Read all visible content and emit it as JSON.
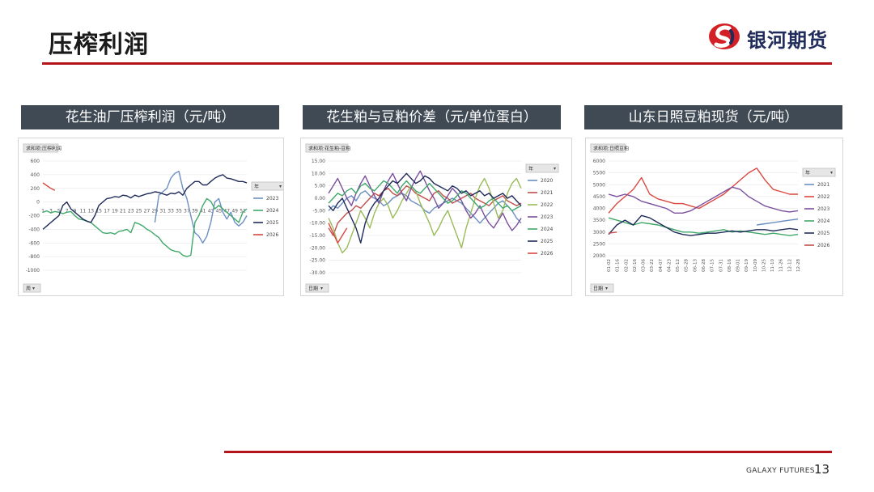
{
  "page": {
    "title": "压榨利润",
    "brand": "银河期货",
    "footer_brand": "GALAXY FUTURES",
    "page_number": "13",
    "accent_color": "#b5141b",
    "header_bg": "#3f4a55"
  },
  "chart_data": [
    {
      "type": "line",
      "title": "花生油厂压榨利润（元/吨）",
      "field_label": "求和项:压榨利润",
      "axis_button": "周",
      "legend_title": "年",
      "ylim": [
        -1000,
        600
      ],
      "yticks": [
        600,
        400,
        200,
        0,
        -200,
        -400,
        -600,
        -800,
        -1000
      ],
      "ytick_labels": [
        "600",
        "400",
        "200",
        "0",
        "-200",
        "-400",
        "-600",
        "-800",
        "-1000"
      ],
      "xticks": [
        1,
        3,
        5,
        7,
        9,
        11,
        13,
        15,
        17,
        19,
        21,
        23,
        25,
        27,
        29,
        31,
        33,
        35,
        37,
        39,
        41,
        43,
        45,
        47,
        49,
        51
      ],
      "xtick_labels": [
        "1",
        "3",
        "5",
        "7",
        "9",
        "11",
        "13",
        "15",
        "17",
        "19",
        "21",
        "23",
        "25",
        "27",
        "29",
        "31",
        "33",
        "35",
        "37",
        "39",
        "41",
        "43",
        "45",
        "47",
        "49",
        "51"
      ],
      "xlim": [
        1,
        52
      ],
      "grid": true,
      "legend_position": "right",
      "series": [
        {
          "name": "2023",
          "color": "#6a8fc2",
          "x": [
            29,
            30,
            31,
            32,
            33,
            34,
            35,
            36,
            37,
            38,
            39,
            40,
            41,
            42,
            43,
            44,
            45,
            46,
            47,
            48,
            49,
            50,
            51,
            52
          ],
          "values": [
            -300,
            100,
            150,
            200,
            350,
            420,
            450,
            200,
            50,
            -200,
            -450,
            -500,
            -600,
            -500,
            -300,
            0,
            50,
            -150,
            -250,
            -150,
            -300,
            -350,
            -300,
            -200
          ]
        },
        {
          "name": "2024",
          "color": "#3fa86a",
          "x": [
            1,
            2,
            3,
            4,
            5,
            6,
            7,
            8,
            9,
            10,
            11,
            12,
            13,
            14,
            15,
            16,
            17,
            18,
            19,
            20,
            21,
            22,
            23,
            24,
            25,
            26,
            27,
            28,
            29,
            30,
            31,
            32,
            33,
            34,
            35,
            36,
            37,
            38,
            39,
            40,
            41,
            42,
            43,
            44,
            45,
            46,
            47,
            48,
            49,
            50,
            51,
            52
          ],
          "values": [
            -150,
            -130,
            -160,
            -140,
            -150,
            -170,
            -150,
            -140,
            -200,
            -250,
            -260,
            -280,
            -300,
            -350,
            -400,
            -450,
            -460,
            -450,
            -470,
            -430,
            -420,
            -400,
            -450,
            -300,
            -320,
            -350,
            -400,
            -430,
            -480,
            -520,
            -600,
            -650,
            -700,
            -720,
            -730,
            -780,
            -800,
            -780,
            -300,
            -200,
            -50,
            50,
            10,
            -100,
            -50,
            -100,
            -150,
            -200,
            -250,
            -300,
            -150,
            -100
          ]
        },
        {
          "name": "2025",
          "color": "#1f2b5a",
          "x": [
            1,
            2,
            3,
            4,
            5,
            6,
            7,
            8,
            9,
            10,
            11,
            12,
            13,
            14,
            15,
            16,
            17,
            18,
            19,
            20,
            21,
            22,
            23,
            24,
            25,
            26,
            27,
            28,
            29,
            30,
            31,
            32,
            33,
            34,
            35,
            36,
            37,
            38,
            39,
            40,
            41,
            42,
            43,
            44,
            45,
            46,
            47,
            48,
            49,
            50,
            51,
            52
          ],
          "values": [
            -400,
            -350,
            -300,
            -250,
            -200,
            -50,
            0,
            -100,
            -150,
            -200,
            -250,
            -280,
            -300,
            -200,
            -50,
            0,
            50,
            60,
            80,
            70,
            100,
            90,
            60,
            100,
            80,
            100,
            120,
            130,
            150,
            140,
            120,
            100,
            130,
            120,
            150,
            100,
            200,
            250,
            300,
            300,
            250,
            250,
            300,
            350,
            380,
            400,
            350,
            340,
            320,
            300,
            300,
            280
          ]
        },
        {
          "name": "2026",
          "color": "#d9473f",
          "x": [
            1,
            2,
            3,
            4
          ],
          "values": [
            280,
            240,
            200,
            170
          ]
        }
      ]
    },
    {
      "type": "line",
      "title": "花生粕与豆粕价差（元/单位蛋白）",
      "field_label": "求和项:花生粕-豆粕",
      "axis_button": "日期",
      "legend_title": "年",
      "ylim": [
        -30,
        15
      ],
      "yticks": [
        15,
        10,
        5,
        0,
        -5,
        -10,
        -15,
        -20,
        -25,
        -30
      ],
      "ytick_labels": [
        "15.00",
        "10.00",
        "5.00",
        "0.00",
        "-5.00",
        "-10.00",
        "-15.00",
        "-20.00",
        "-25.00",
        "-30.00"
      ],
      "grid": true,
      "legend_position": "right",
      "series": [
        {
          "name": "2020",
          "color": "#6a8fc2",
          "values": [
            -5,
            -3,
            -4,
            -2,
            0,
            1,
            -1,
            2,
            3,
            1,
            0,
            -1,
            -3,
            -2,
            0,
            1,
            2,
            1,
            -1,
            -2,
            -3,
            -5,
            -6,
            -4,
            -3,
            -2,
            -1,
            0,
            -1,
            -2,
            -4,
            -6,
            -8,
            -10,
            -8,
            -6,
            -4,
            -2,
            -1,
            -3,
            -5,
            -8,
            -10
          ]
        },
        {
          "name": "2021",
          "color": "#c0504d",
          "values": [
            -12,
            -15,
            -10,
            -8,
            -6,
            -5,
            -3,
            -4,
            -2,
            0,
            2,
            1,
            3,
            4,
            2,
            1,
            3,
            5,
            4,
            2,
            1,
            0,
            -1,
            2,
            3,
            1,
            0,
            -2,
            -1,
            0,
            1,
            2,
            0,
            -1,
            -2,
            -3,
            -1,
            0,
            1,
            -1,
            -2,
            -3,
            -2
          ]
        },
        {
          "name": "2022",
          "color": "#9bbb59",
          "values": [
            -8,
            -12,
            -18,
            -22,
            -20,
            -15,
            -10,
            -5,
            -8,
            -12,
            -6,
            -2,
            0,
            -3,
            -8,
            -5,
            -1,
            2,
            5,
            3,
            -2,
            -6,
            -10,
            -15,
            -12,
            -8,
            -5,
            -10,
            -15,
            -20,
            -12,
            -6,
            0,
            5,
            8,
            4,
            -2,
            -8,
            -5,
            2,
            6,
            8,
            4
          ]
        },
        {
          "name": "2023",
          "color": "#7b4f9d",
          "values": [
            2,
            5,
            8,
            4,
            0,
            -3,
            2,
            6,
            9,
            5,
            1,
            -2,
            3,
            7,
            10,
            6,
            2,
            -1,
            4,
            8,
            11,
            7,
            3,
            0,
            -4,
            -2,
            1,
            4,
            2,
            -1,
            -5,
            -8,
            -6,
            -3,
            -7,
            -10,
            -12,
            -9,
            -6,
            -10,
            -13,
            -11,
            -8
          ]
        },
        {
          "name": "2024",
          "color": "#3fa86a",
          "values": [
            -2,
            0,
            2,
            1,
            3,
            4,
            2,
            5,
            6,
            4,
            3,
            5,
            7,
            6,
            4,
            2,
            5,
            7,
            5,
            3,
            2,
            4,
            6,
            4,
            2,
            0,
            -2,
            -1,
            1,
            3,
            2,
            0,
            -2,
            -4,
            -3,
            -1,
            0,
            -2,
            -4,
            -3,
            -5,
            -4,
            -3
          ]
        },
        {
          "name": "2025",
          "color": "#1f2b5a",
          "values": [
            -3,
            -5,
            -2,
            0,
            -4,
            -8,
            -12,
            -18,
            -10,
            -5,
            -2,
            0,
            3,
            5,
            7,
            6,
            8,
            10,
            8,
            6,
            7,
            9,
            8,
            6,
            5,
            4,
            3,
            5,
            4,
            2,
            3,
            1,
            2,
            3,
            1,
            2,
            0,
            1,
            2,
            0,
            1,
            -1,
            -3
          ]
        },
        {
          "name": "2026",
          "color": "#d9473f",
          "values": [
            -10,
            -14,
            -18,
            -15,
            -12
          ]
        }
      ]
    },
    {
      "type": "line",
      "title": "山东日照豆粕现货（元/吨）",
      "field_label": "求和项:日照豆粕",
      "axis_button": "日期",
      "legend_title": "年",
      "ylim": [
        2000,
        6000
      ],
      "yticks": [
        6000,
        5500,
        5000,
        4500,
        4000,
        3500,
        3000,
        2500,
        2000
      ],
      "ytick_labels": [
        "6000",
        "5500",
        "5000",
        "4500",
        "4000",
        "3500",
        "3000",
        "2500",
        "2000"
      ],
      "xtick_labels": [
        "01-02",
        "01-16",
        "02-02",
        "02-16",
        "03-06",
        "03-22",
        "04-07",
        "04-23",
        "05-12",
        "05-28",
        "06-13",
        "06-28",
        "07-15",
        "07-31",
        "08-16",
        "09-01",
        "09-19",
        "10-09",
        "10-25",
        "11-10",
        "11-26",
        "12-12",
        "12-28"
      ],
      "grid": true,
      "legend_position": "right",
      "series": [
        {
          "name": "2021",
          "color": "#6a8fc2",
          "values": [
            null,
            null,
            null,
            null,
            null,
            null,
            null,
            null,
            null,
            null,
            null,
            null,
            null,
            null,
            null,
            null,
            null,
            null,
            3300,
            3350,
            3400,
            3450,
            3500,
            3550
          ]
        },
        {
          "name": "2022",
          "color": "#d9473f",
          "values": [
            3800,
            4200,
            4500,
            4800,
            5300,
            4600,
            4400,
            4300,
            4200,
            4200,
            4100,
            4000,
            4200,
            4400,
            4600,
            4900,
            5200,
            5500,
            5700,
            5200,
            4800,
            4700,
            4600,
            4600
          ]
        },
        {
          "name": "2023",
          "color": "#7b4f9d",
          "values": [
            4600,
            4500,
            4600,
            4500,
            4300,
            4200,
            4100,
            4000,
            3800,
            3800,
            3900,
            4100,
            4300,
            4500,
            4700,
            4900,
            4800,
            4500,
            4300,
            4100,
            4000,
            3900,
            3850,
            3900
          ]
        },
        {
          "name": "2024",
          "color": "#3fa86a",
          "values": [
            3600,
            3500,
            3400,
            3300,
            3400,
            3350,
            3300,
            3200,
            3100,
            3000,
            3000,
            2950,
            3000,
            3050,
            3100,
            3000,
            3050,
            3000,
            2950,
            2900,
            2950,
            2900,
            2850,
            2900
          ]
        },
        {
          "name": "2025",
          "color": "#1f2b5a",
          "values": [
            2900,
            3300,
            3500,
            3300,
            3700,
            3600,
            3400,
            3200,
            3000,
            2900,
            2850,
            2900,
            2950,
            2950,
            3000,
            3050,
            3000,
            3050,
            3100,
            3100,
            3050,
            3100,
            3150,
            3100
          ]
        },
        {
          "name": "2026",
          "color": "#c0504d",
          "values": [
            2950,
            3000
          ]
        }
      ]
    }
  ]
}
